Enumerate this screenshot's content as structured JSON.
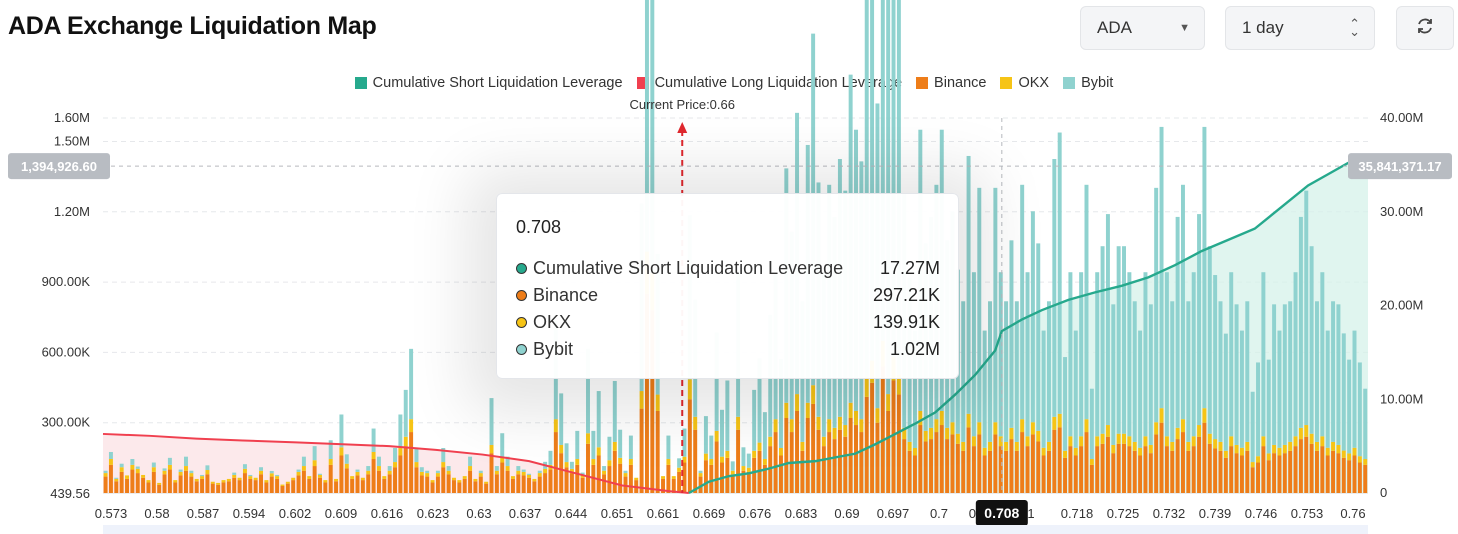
{
  "header": {
    "title": "ADA Exchange Liquidation Map",
    "coin_select": "ADA",
    "range_select": "1 day",
    "refresh_icon": "refresh-icon"
  },
  "legend": [
    {
      "label": "Cumulative Short Liquidation Leverage",
      "color": "#26a98d"
    },
    {
      "label": "Cumulative Long Liquidation Leverage",
      "color": "#f0404f"
    },
    {
      "label": "Binance",
      "color": "#ee7d19"
    },
    {
      "label": "OKX",
      "color": "#f6c416"
    },
    {
      "label": "Bybit",
      "color": "#8fd2cf"
    }
  ],
  "tooltip": {
    "title": "0.708",
    "rows": [
      {
        "name": "Cumulative Short Liquidation Leverage",
        "value": "17.27M",
        "color": "#26a98d"
      },
      {
        "name": "Binance",
        "value": "297.21K",
        "color": "#ee7d19"
      },
      {
        "name": "OKX",
        "value": "139.91K",
        "color": "#f6c416"
      },
      {
        "name": "Bybit",
        "value": "1.02M",
        "color": "#8fd2cf"
      }
    ]
  },
  "chart_data": {
    "type": "bar",
    "current_price_label": "Current Price:0.66",
    "current_price": 0.66,
    "hover_price": "0.708",
    "x_ticks": [
      "0.573",
      "0.58",
      "0.587",
      "0.594",
      "0.602",
      "0.609",
      "0.616",
      "0.623",
      "0.63",
      "0.637",
      "0.644",
      "0.651",
      "0.661",
      "0.669",
      "0.676",
      "0.683",
      "0.69",
      "0.697",
      "0.7",
      "0.708",
      "1",
      "0.718",
      "0.725",
      "0.732",
      "0.739",
      "0.746",
      "0.753",
      "0.76"
    ],
    "y_left": {
      "ticks": [
        "1.60M",
        "1.50M",
        "1.20M",
        "900.00K",
        "600.00K",
        "300.00K",
        "439.56"
      ],
      "tick_values": [
        1600000,
        1500000,
        1200000,
        900000,
        600000,
        300000,
        439.56
      ],
      "max": 1600000
    },
    "y_right": {
      "ticks": [
        "40.00M",
        "30.00M",
        "20.00M",
        "10.00M",
        "0"
      ],
      "tick_values": [
        40000000,
        30000000,
        20000000,
        10000000,
        0
      ],
      "max": 40000000
    },
    "crosshair_left": "1,394,926.60",
    "crosshair_right": "35,841,371.17",
    "x_start": 0.573,
    "x_end": 0.763,
    "series_bars": {
      "binance": [
        70,
        120,
        50,
        90,
        60,
        100,
        85,
        65,
        45,
        90,
        35,
        80,
        100,
        45,
        75,
        95,
        70,
        50,
        60,
        80,
        40,
        35,
        45,
        50,
        65,
        55,
        85,
        60,
        55,
        80,
        45,
        70,
        60,
        30,
        40,
        55,
        75,
        95,
        60,
        115,
        65,
        45,
        120,
        50,
        160,
        105,
        60,
        75,
        55,
        80,
        145,
        95,
        60,
        80,
        110,
        160,
        200,
        260,
        110,
        75,
        70,
        45,
        70,
        110,
        80,
        55,
        45,
        60,
        95,
        50,
        70,
        40,
        170,
        80,
        130,
        95,
        60,
        80,
        75,
        65,
        50,
        70,
        85,
        100,
        260,
        170,
        110,
        85,
        120,
        65,
        210,
        120,
        160,
        80,
        115,
        180,
        125,
        70,
        120,
        55,
        360,
        850,
        780,
        350,
        60,
        120,
        60,
        90,
        130,
        400,
        270,
        70,
        140,
        120,
        220,
        130,
        150,
        80,
        270,
        95,
        90,
        150,
        180,
        120,
        200,
        260,
        160,
        320,
        260,
        350,
        180,
        320,
        380,
        270,
        200,
        260,
        230,
        270,
        240,
        320,
        290,
        260,
        410,
        470,
        300,
        540,
        350,
        480,
        420,
        230,
        180,
        160,
        290,
        220,
        230,
        260,
        290,
        230,
        250,
        210,
        180,
        280,
        200,
        250,
        160,
        180,
        250,
        200,
        180,
        230,
        180,
        260,
        200,
        250,
        220,
        160,
        180,
        270,
        280,
        150,
        200,
        160,
        200,
        260,
        120,
        200,
        210,
        240,
        170,
        210,
        210,
        200,
        180,
        160,
        200,
        170,
        250,
        300,
        200,
        180,
        230,
        260,
        180,
        200,
        240,
        300,
        210,
        190,
        180,
        150,
        200,
        170,
        160,
        180,
        110,
        130,
        200,
        140,
        170,
        160,
        170,
        180,
        200,
        230,
        240,
        210,
        180,
        200,
        160,
        180,
        170,
        150,
        140,
        160,
        130,
        120
      ],
      "okx": [
        15,
        25,
        10,
        20,
        15,
        20,
        18,
        12,
        10,
        20,
        8,
        15,
        20,
        10,
        15,
        20,
        15,
        10,
        12,
        18,
        8,
        8,
        10,
        10,
        12,
        10,
        18,
        12,
        10,
        15,
        10,
        14,
        12,
        6,
        8,
        10,
        15,
        20,
        12,
        25,
        12,
        10,
        25,
        10,
        35,
        20,
        12,
        15,
        10,
        15,
        30,
        20,
        12,
        15,
        22,
        35,
        40,
        55,
        22,
        15,
        15,
        10,
        15,
        22,
        15,
        10,
        10,
        12,
        20,
        10,
        15,
        8,
        35,
        15,
        25,
        20,
        12,
        15,
        15,
        12,
        10,
        15,
        18,
        20,
        55,
        35,
        22,
        18,
        25,
        12,
        45,
        25,
        35,
        15,
        25,
        38,
        25,
        15,
        25,
        10,
        75,
        180,
        160,
        70,
        12,
        25,
        12,
        18,
        25,
        85,
        55,
        15,
        28,
        25,
        45,
        25,
        30,
        15,
        55,
        20,
        18,
        30,
        35,
        25,
        40,
        55,
        32,
        65,
        55,
        72,
        38,
        65,
        80,
        55,
        40,
        55,
        48,
        55,
        50,
        65,
        60,
        55,
        85,
        95,
        62,
        110,
        72,
        100,
        85,
        48,
        38,
        32,
        60,
        45,
        48,
        55,
        60,
        48,
        52,
        43,
        38,
        58,
        42,
        52,
        33,
        38,
        52,
        42,
        38,
        48,
        38,
        55,
        42,
        52,
        45,
        33,
        38,
        55,
        58,
        30,
        42,
        33,
        42,
        55,
        25,
        42,
        43,
        50,
        35,
        43,
        43,
        42,
        38,
        33,
        42,
        35,
        52,
        62,
        42,
        38,
        48,
        55,
        38,
        42,
        50,
        62,
        43,
        40,
        38,
        30,
        42,
        35,
        33,
        38,
        22,
        27,
        42,
        29,
        35,
        33,
        35,
        38,
        42,
        48,
        50,
        43,
        38,
        42,
        33,
        38,
        35,
        31,
        29,
        33,
        27,
        25
      ],
      "bybit": [
        10,
        30,
        5,
        15,
        0,
        25,
        10,
        0,
        0,
        20,
        0,
        10,
        30,
        0,
        10,
        40,
        10,
        0,
        5,
        20,
        0,
        0,
        0,
        0,
        10,
        0,
        20,
        5,
        0,
        15,
        0,
        10,
        5,
        0,
        0,
        0,
        10,
        40,
        0,
        60,
        5,
        0,
        80,
        0,
        140,
        40,
        0,
        10,
        0,
        20,
        100,
        40,
        0,
        20,
        60,
        140,
        200,
        300,
        60,
        20,
        10,
        0,
        10,
        60,
        20,
        0,
        0,
        0,
        40,
        0,
        10,
        0,
        200,
        20,
        100,
        40,
        0,
        20,
        10,
        5,
        0,
        10,
        30,
        60,
        420,
        220,
        80,
        30,
        120,
        10,
        360,
        120,
        240,
        20,
        100,
        260,
        120,
        10,
        100,
        0,
        800,
        1500,
        1400,
        600,
        0,
        100,
        0,
        40,
        120,
        700,
        500,
        10,
        160,
        100,
        420,
        200,
        300,
        40,
        620,
        80,
        60,
        260,
        360,
        200,
        520,
        620,
        380,
        1000,
        800,
        1200,
        600,
        1100,
        1500,
        1000,
        700,
        1000,
        900,
        1100,
        1000,
        1400,
        1200,
        1100,
        1900,
        2400,
        1300,
        2800,
        1700,
        2400,
        2100,
        1000,
        700,
        500,
        1200,
        800,
        900,
        1000,
        1200,
        800,
        900,
        700,
        600,
        1100,
        700,
        1000,
        500,
        600,
        1000,
        700,
        600,
        800,
        600,
        1000,
        700,
        900,
        800,
        500,
        600,
        1100,
        1200,
        400,
        700,
        500,
        700,
        1000,
        300,
        700,
        800,
        900,
        600,
        800,
        800,
        700,
        600,
        500,
        700,
        600,
        1000,
        1200,
        700,
        600,
        900,
        1000,
        600,
        700,
        900,
        1200,
        800,
        700,
        600,
        500,
        700,
        600,
        500,
        600,
        300,
        400,
        700,
        400,
        600,
        500,
        600,
        600,
        700,
        900,
        1000,
        800,
        600,
        700,
        500,
        600,
        600,
        500,
        400,
        500,
        400,
        300
      ]
    },
    "short_cumulative": [
      [
        0.661,
        0
      ],
      [
        0.664,
        1.2
      ],
      [
        0.667,
        1.8
      ],
      [
        0.67,
        2.1
      ],
      [
        0.673,
        2.6
      ],
      [
        0.676,
        3.2
      ],
      [
        0.68,
        3.4
      ],
      [
        0.683,
        3.8
      ],
      [
        0.686,
        4.2
      ],
      [
        0.689,
        5.2
      ],
      [
        0.692,
        6.3
      ],
      [
        0.695,
        7.4
      ],
      [
        0.698,
        8.6
      ],
      [
        0.701,
        10.5
      ],
      [
        0.704,
        12.6
      ],
      [
        0.707,
        15.2
      ],
      [
        0.708,
        17.27
      ],
      [
        0.711,
        18.5
      ],
      [
        0.714,
        19.5
      ],
      [
        0.718,
        20.6
      ],
      [
        0.722,
        21.4
      ],
      [
        0.726,
        22.1
      ],
      [
        0.73,
        23.0
      ],
      [
        0.734,
        24.3
      ],
      [
        0.738,
        25.8
      ],
      [
        0.742,
        27.0
      ],
      [
        0.746,
        28.2
      ],
      [
        0.75,
        30.5
      ],
      [
        0.754,
        32.8
      ],
      [
        0.757,
        34.0
      ],
      [
        0.76,
        35.2
      ],
      [
        0.763,
        35.84
      ]
    ],
    "long_cumulative": [
      [
        0.573,
        6.3
      ],
      [
        0.58,
        6.1
      ],
      [
        0.587,
        5.8
      ],
      [
        0.594,
        5.6
      ],
      [
        0.602,
        5.4
      ],
      [
        0.609,
        5.2
      ],
      [
        0.616,
        5.0
      ],
      [
        0.623,
        4.6
      ],
      [
        0.63,
        4.1
      ],
      [
        0.637,
        3.4
      ],
      [
        0.644,
        2.1
      ],
      [
        0.651,
        0.8
      ],
      [
        0.658,
        0.2
      ],
      [
        0.661,
        0
      ]
    ]
  }
}
